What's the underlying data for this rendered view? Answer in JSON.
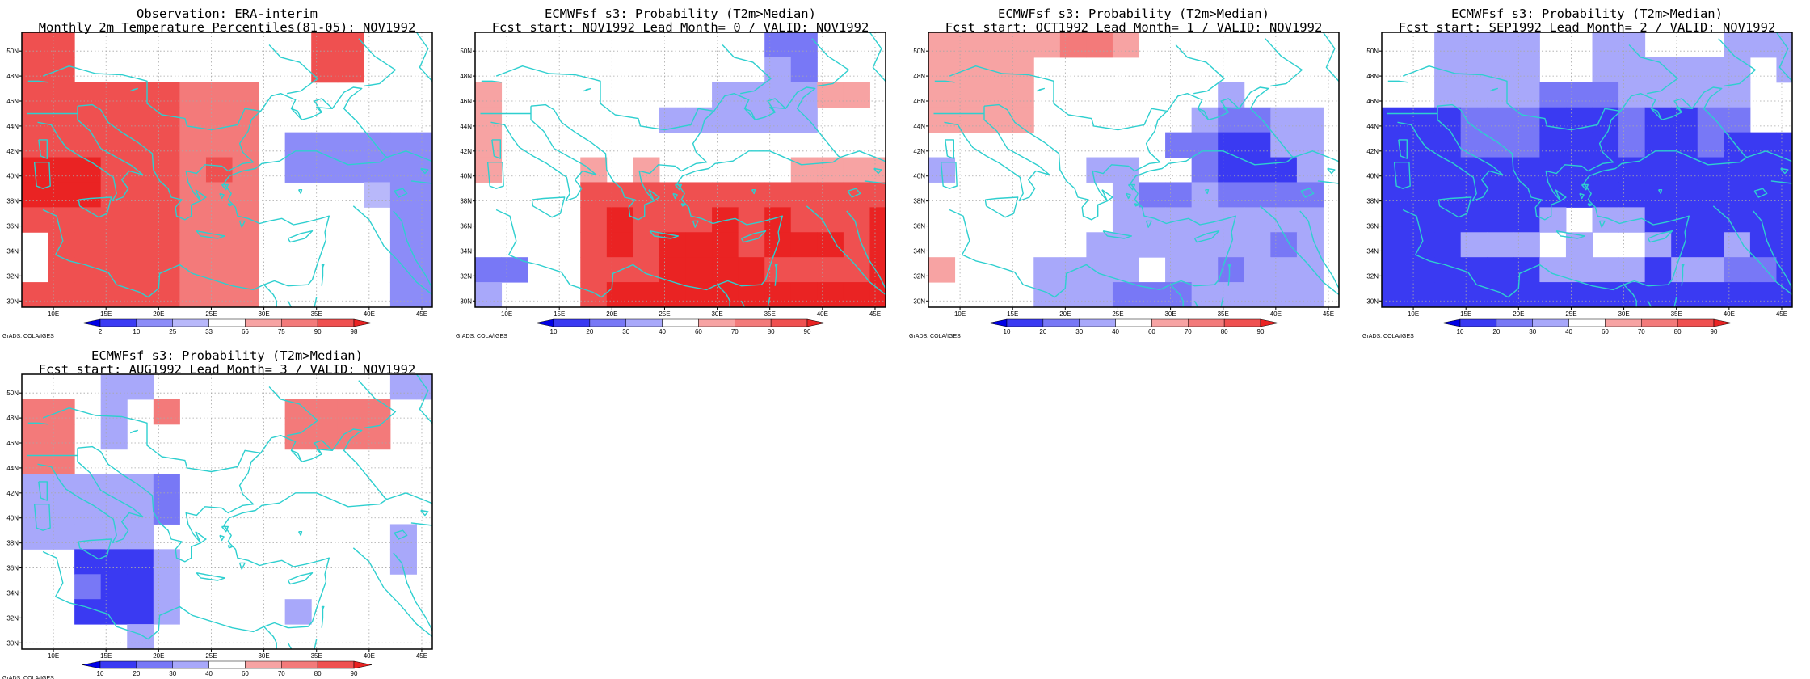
{
  "credit": "GrADS: COLA/IGES",
  "colors": {
    "coast": "#2ecfcf",
    "grid": "#a8a8a8",
    "scale_percentile": [
      "#0000e6",
      "#3c3cf4",
      "#8c8cf8",
      "#b8b8fa",
      "#ffffff",
      "#f7a3a3",
      "#f37a7a",
      "#ef5050",
      "#ea2323"
    ],
    "scale_probability": [
      "#0000e6",
      "#3a3af2",
      "#7878f6",
      "#a8a8fa",
      "#ffffff",
      "#f7a3a3",
      "#f37a7a",
      "#ef5050",
      "#ea2323"
    ]
  },
  "map": {
    "lon_range": [
      7,
      46
    ],
    "lat_range": [
      29.5,
      51.5
    ],
    "lon_ticks": [
      "10E",
      "15E",
      "20E",
      "25E",
      "30E",
      "35E",
      "40E",
      "45E"
    ],
    "lat_ticks": [
      "30N",
      "32N",
      "34N",
      "36N",
      "38N",
      "40N",
      "42N",
      "44N",
      "46N",
      "48N",
      "50N"
    ],
    "cell_lon": [
      7,
      9.5,
      12,
      14.5,
      17,
      19.5,
      22,
      24.5,
      27,
      29.5,
      32,
      34.5,
      37,
      39.5,
      42,
      44.5,
      46
    ],
    "cell_lat": [
      51.5,
      49.5,
      47.5,
      45.5,
      43.5,
      41.5,
      39.5,
      37.5,
      35.5,
      33.5,
      31.5,
      29.5
    ]
  },
  "panels": [
    {
      "id": "obs",
      "title1": "Observation: ERA-interim",
      "title2": "Monthly 2m Temperature Percentiles(81-05): NOV1992",
      "scale": "scale_percentile",
      "bins": [
        "2",
        "10",
        "25",
        "33",
        "66",
        "75",
        "90",
        "98"
      ],
      "grid": [
        "7744444444477444",
        "7744444444477444",
        "7777776664444444",
        "7777776664444444",
        "7777776664222222",
        "8887776764222222",
        "8887776664444322",
        "7777776664444422",
        "4777776664444422",
        "4777776664444422",
        "7777776664444422"
      ]
    },
    {
      "id": "lead0",
      "title1": "ECMWFsf s3: Probability (T2m>Median)",
      "title2": "Fcst start: NOV1992  Lead Month= 0 / VALID: NOV1992",
      "scale": "scale_probability",
      "bins": [
        "10",
        "20",
        "30",
        "40",
        "60",
        "70",
        "80",
        "90"
      ],
      "grid": [
        "4444444444422444",
        "4444444444432444",
        "5444444443333554",
        "5444444333333444",
        "5444444444444444",
        "5444545444445555",
        "4444777777777777",
        "4444787778787778",
        "4444787888788878",
        "2244777888877778",
        "3444788888888888"
      ]
    },
    {
      "id": "lead1",
      "title1": "ECMWFsf s3: Probability (T2m>Median)",
      "title2": "Fcst start: OCT1992  Lead Month= 1 / VALID: NOV1992",
      "scale": "scale_probability",
      "bins": [
        "10",
        "20",
        "30",
        "40",
        "60",
        "70",
        "80",
        "90"
      ],
      "grid": [
        "5555566544444444",
        "5555444444444444",
        "5555444444434444",
        "5555444444322334",
        "4444444442211334",
        "3444443344211134",
        "4444444322322224",
        "4444444333333334",
        "4444443333333234",
        "5444333343323334",
        "4444333222333334"
      ]
    },
    {
      "id": "lead2",
      "title1": "ECMWFsf s3: Probability (T2m>Median)",
      "title2": "Fcst start: SEP1992  Lead Month= 2 / VALID: NOV1992",
      "scale": "scale_probability",
      "bins": [
        "10",
        "20",
        "30",
        "40",
        "60",
        "70",
        "80",
        "90"
      ],
      "grid": [
        "4433334433444333",
        "4433334433333343",
        "4433332223333344",
        "1112221112112244",
        "1112221112112111",
        "1111111111111111",
        "1111111111111111",
        "1111113433111111",
        "1113334344311311",
        "1111113333133221",
        "1111111111111111"
      ]
    },
    {
      "id": "lead3",
      "title1": "ECMWFsf s3: Probability (T2m>Median)",
      "title2": "Fcst start: AUG1992  Lead Month= 3 / VALID: NOV1992",
      "scale": "scale_probability",
      "bins": [
        "10",
        "20",
        "30",
        "40",
        "60",
        "70",
        "80",
        "90"
      ],
      "grid": [
        "4443344444444433",
        "6643464444666644",
        "6643444444666644",
        "6644444444444444",
        "3333324444444444",
        "3333324444444444",
        "3333344444444434",
        "4411134444444434",
        "4421134444444444",
        "4411134444344444",
        "4444344444444444"
      ]
    }
  ]
}
